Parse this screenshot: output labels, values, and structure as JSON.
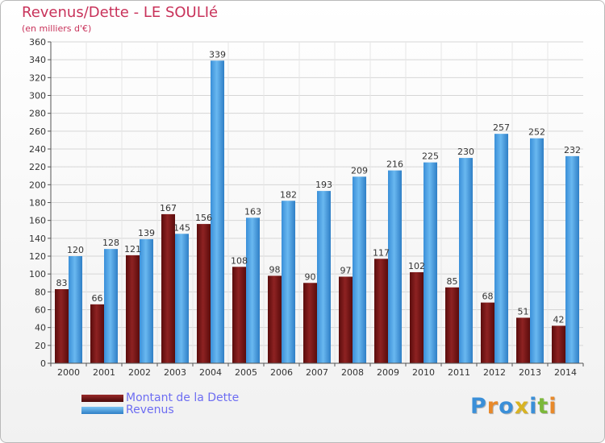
{
  "chart_data": {
    "type": "bar",
    "title": "Revenus/Dette - LE SOULIé",
    "subtitle": "(en milliers d'€)",
    "categories": [
      "2000",
      "2001",
      "2002",
      "2003",
      "2004",
      "2005",
      "2006",
      "2007",
      "2008",
      "2009",
      "2010",
      "2011",
      "2012",
      "2013",
      "2014"
    ],
    "series": [
      {
        "name": "Montant de la Dette",
        "color": "#7a1717",
        "values": [
          83,
          66,
          121,
          167,
          156,
          108,
          98,
          90,
          97,
          117,
          102,
          85,
          68,
          51,
          42
        ]
      },
      {
        "name": "Revenus",
        "color": "#4ea6e6",
        "values": [
          120,
          128,
          139,
          145,
          339,
          163,
          182,
          193,
          209,
          216,
          225,
          230,
          257,
          252,
          232
        ]
      }
    ],
    "ylim": [
      0,
      360
    ],
    "yticks": [
      0,
      20,
      40,
      60,
      80,
      100,
      120,
      140,
      160,
      180,
      200,
      220,
      240,
      260,
      280,
      300,
      320,
      340,
      360
    ],
    "grid": true,
    "legend": "bottom-left"
  },
  "logo": {
    "letters": [
      {
        "char": "P",
        "color": "#3a8fd8"
      },
      {
        "char": "r",
        "color": "#e8892a"
      },
      {
        "char": "o",
        "color": "#3a8fd8"
      },
      {
        "char": "x",
        "color": "#d8b323"
      },
      {
        "char": "i",
        "color": "#3a8fd8"
      },
      {
        "char": "t",
        "color": "#7cb83a"
      },
      {
        "char": "i",
        "color": "#e8892a"
      }
    ]
  }
}
